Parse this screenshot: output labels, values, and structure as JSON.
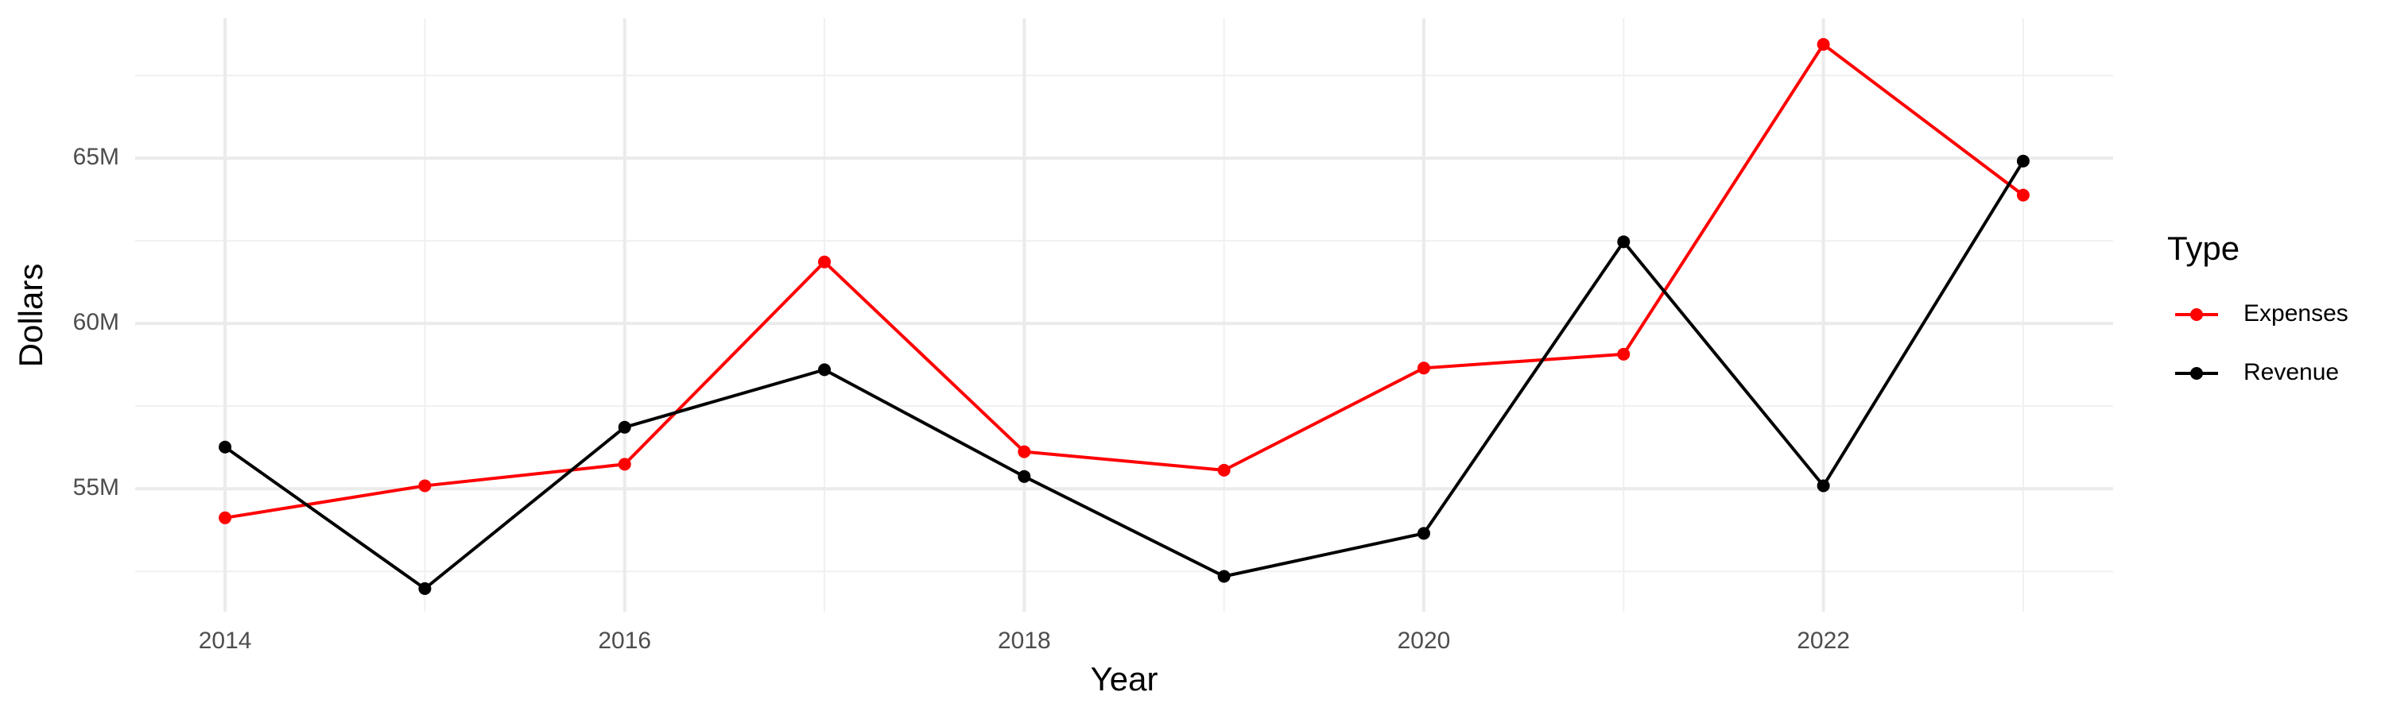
{
  "chart_data": {
    "type": "line",
    "x_label": "Year",
    "y_label": "Dollars",
    "legend_title": "Type",
    "legend": "right",
    "grid": true,
    "x": [
      2014,
      2015,
      2016,
      2017,
      2018,
      2019,
      2020,
      2021,
      2022,
      2023
    ],
    "series": [
      {
        "name": "Expenses",
        "color": "#ff0000",
        "values": [
          54120000,
          55090000,
          55740000,
          61860000,
          56120000,
          55560000,
          58650000,
          59070000,
          68440000,
          63880000
        ]
      },
      {
        "name": "Revenue",
        "color": "#000000",
        "values": [
          56260000,
          51980000,
          56860000,
          58600000,
          55370000,
          52350000,
          53650000,
          62470000,
          55090000,
          64910000
        ]
      }
    ],
    "xlim": [
      2013.55,
      2023.45
    ],
    "xticks": [
      2014,
      2016,
      2018,
      2020,
      2022
    ],
    "ylim": [
      51280000,
      69230000
    ],
    "yticks": [
      {
        "value": 55000000,
        "label": "55M"
      },
      {
        "value": 60000000,
        "label": "60M"
      },
      {
        "value": 65000000,
        "label": "65M"
      }
    ]
  }
}
